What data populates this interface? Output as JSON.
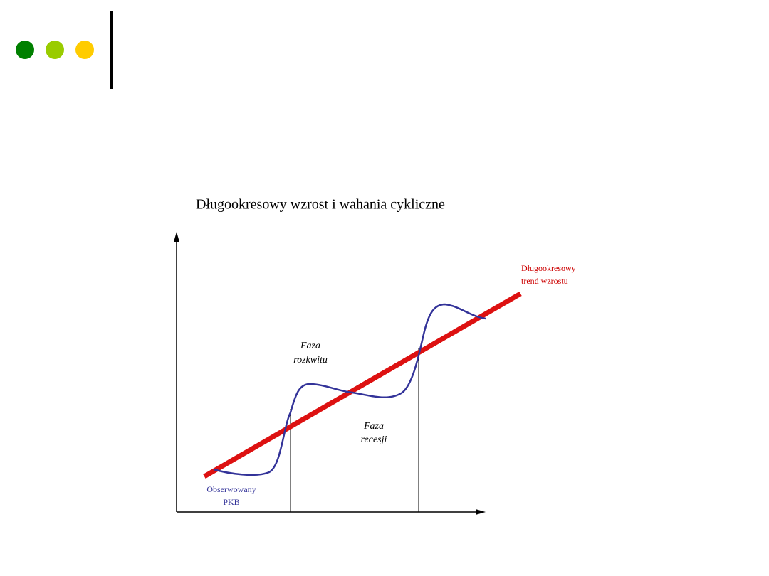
{
  "title": "Długookresowy wzrost i wahania cykliczne",
  "labels": {
    "trend": [
      "Długookresowy",
      "trend wzrostu"
    ],
    "boom": [
      "Faza",
      "rozkwitu"
    ],
    "recession": [
      "Faza",
      "recesji"
    ],
    "observed": [
      "Obserwowany",
      "PKB"
    ]
  }
}
